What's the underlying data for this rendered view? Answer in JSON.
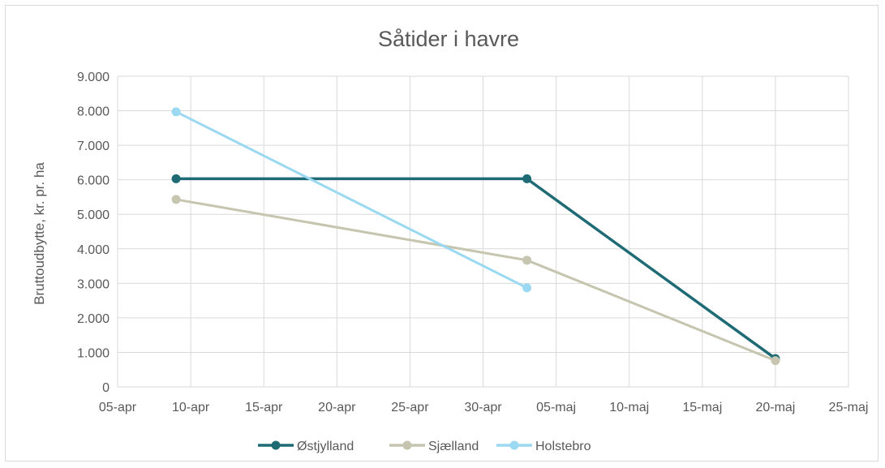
{
  "chart_data": {
    "type": "line",
    "title": "Såtider i havre",
    "xlabel": "",
    "ylabel": "Bruttoudbytte, kr. pr. ha",
    "x_tick_labels": [
      "05-apr",
      "10-apr",
      "15-apr",
      "20-apr",
      "25-apr",
      "30-apr",
      "05-maj",
      "10-maj",
      "15-maj",
      "20-maj",
      "25-maj"
    ],
    "y_tick_labels": [
      "0",
      "1.000",
      "2.000",
      "3.000",
      "4.000",
      "5.000",
      "6.000",
      "7.000",
      "8.000",
      "9.000"
    ],
    "xlim": [
      "05-apr",
      "25-maj"
    ],
    "ylim": [
      0,
      9000
    ],
    "grid": true,
    "legend_position": "bottom",
    "series": [
      {
        "name": "Østjylland",
        "color": "#1f6b75",
        "points": [
          {
            "x": "09-apr",
            "y": 6030
          },
          {
            "x": "03-maj",
            "y": 6030
          },
          {
            "x": "20-maj",
            "y": 820
          }
        ]
      },
      {
        "name": "Sjælland",
        "color": "#c5c5b0",
        "points": [
          {
            "x": "09-apr",
            "y": 5430
          },
          {
            "x": "03-maj",
            "y": 3670
          },
          {
            "x": "20-maj",
            "y": 760
          }
        ]
      },
      {
        "name": "Holstebro",
        "color": "#9bd9f2",
        "points": [
          {
            "x": "09-apr",
            "y": 7970
          },
          {
            "x": "03-maj",
            "y": 2870
          }
        ]
      }
    ]
  }
}
